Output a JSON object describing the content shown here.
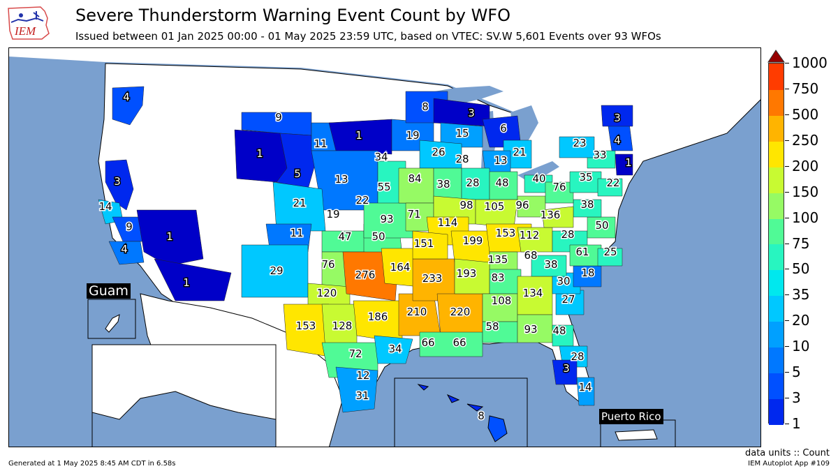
{
  "header": {
    "title": "Severe Thunderstorm Warning Event Count by WFO",
    "subtitle": "Issued between 01 Jan 2025 00:00 - 01 May 2025 23:59 UTC, based on VTEC: SV.W   5,601 Events over 93 WFOs"
  },
  "logo": {
    "text": "IEM"
  },
  "insets": {
    "guam": "Guam",
    "puerto_rico": "Puerto Rico"
  },
  "colorbar": {
    "labels": [
      "1000",
      "750",
      "500",
      "250",
      "200",
      "150",
      "100",
      "75",
      "50",
      "35",
      "20",
      "10",
      "5",
      "3",
      "1"
    ],
    "colors": [
      "#0000c8",
      "#0028ee",
      "#0050ff",
      "#0078ff",
      "#00a0ff",
      "#00c8ff",
      "#00e8ee",
      "#28f5c0",
      "#50fa96",
      "#96fa64",
      "#c8fa32",
      "#ffe600",
      "#ffb400",
      "#ff7800",
      "#ff3c00",
      "#e60000",
      "#960000"
    ]
  },
  "wfo_counts": [
    "4",
    "9",
    "1",
    "1",
    "11",
    "5",
    "3",
    "14",
    "9",
    "4",
    "1",
    "1",
    "13",
    "21",
    "19",
    "11",
    "22",
    "47",
    "50",
    "29",
    "76",
    "120",
    "153",
    "128",
    "72",
    "12",
    "31",
    "34",
    "55",
    "93",
    "276",
    "164",
    "186",
    "210",
    "84",
    "71",
    "151",
    "233",
    "19",
    "8",
    "34",
    "26",
    "3",
    "15",
    "6",
    "21",
    "28",
    "13",
    "38",
    "28",
    "48",
    "98",
    "105",
    "114",
    "199",
    "96",
    "153",
    "40",
    "136",
    "112",
    "135",
    "193",
    "83",
    "220",
    "108",
    "58",
    "66",
    "66",
    "93",
    "48",
    "28",
    "3",
    "14",
    "134",
    "27",
    "30",
    "18",
    "68",
    "38",
    "61",
    "25",
    "28",
    "50",
    "38",
    "76",
    "35",
    "22",
    "33",
    "23",
    "4",
    "3",
    "1",
    "8"
  ],
  "footer": {
    "generated": "Generated at 1 May 2025 8:45 AM CDT in 6.58s",
    "units": "data units :: Count",
    "app": "IEM Autoplot App #109"
  }
}
